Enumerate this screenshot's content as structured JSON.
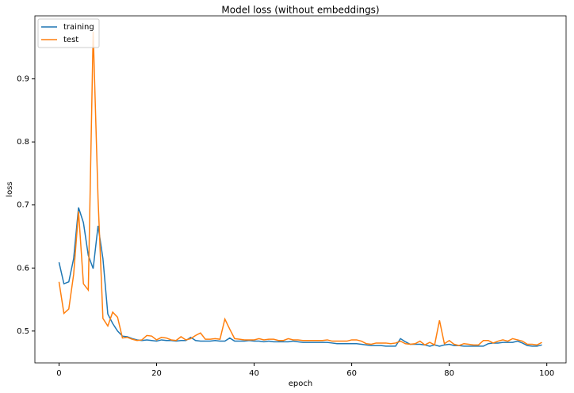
{
  "chart_data": {
    "type": "line",
    "title": "Model loss (without embeddings)",
    "x_label": "epoch",
    "y_label": "loss",
    "x": [
      0,
      1,
      2,
      3,
      4,
      5,
      6,
      7,
      8,
      9,
      10,
      11,
      12,
      13,
      14,
      15,
      16,
      17,
      18,
      19,
      20,
      21,
      22,
      23,
      24,
      25,
      26,
      27,
      28,
      29,
      30,
      31,
      32,
      33,
      34,
      35,
      36,
      37,
      38,
      39,
      40,
      41,
      42,
      43,
      44,
      45,
      46,
      47,
      48,
      49,
      50,
      51,
      52,
      53,
      54,
      55,
      56,
      57,
      58,
      59,
      60,
      61,
      62,
      63,
      64,
      65,
      66,
      67,
      68,
      69,
      70,
      71,
      72,
      73,
      74,
      75,
      76,
      77,
      78,
      79,
      80,
      81,
      82,
      83,
      84,
      85,
      86,
      87,
      88,
      89,
      90,
      91,
      92,
      93,
      94,
      95,
      96,
      97,
      98,
      99
    ],
    "series": [
      {
        "name": "training",
        "color": "#1f77b4",
        "values": [
          0.609,
          0.575,
          0.578,
          0.615,
          0.696,
          0.672,
          0.62,
          0.599,
          0.667,
          0.615,
          0.527,
          0.512,
          0.5,
          0.492,
          0.491,
          0.488,
          0.486,
          0.485,
          0.486,
          0.485,
          0.484,
          0.486,
          0.485,
          0.485,
          0.484,
          0.485,
          0.485,
          0.49,
          0.485,
          0.484,
          0.484,
          0.484,
          0.485,
          0.484,
          0.484,
          0.489,
          0.484,
          0.484,
          0.484,
          0.485,
          0.484,
          0.484,
          0.483,
          0.484,
          0.483,
          0.483,
          0.483,
          0.483,
          0.484,
          0.483,
          0.482,
          0.482,
          0.482,
          0.482,
          0.482,
          0.482,
          0.481,
          0.48,
          0.48,
          0.48,
          0.48,
          0.48,
          0.479,
          0.478,
          0.477,
          0.477,
          0.477,
          0.476,
          0.476,
          0.476,
          0.488,
          0.483,
          0.479,
          0.479,
          0.479,
          0.478,
          0.476,
          0.478,
          0.476,
          0.478,
          0.479,
          0.477,
          0.477,
          0.476,
          0.476,
          0.476,
          0.476,
          0.476,
          0.48,
          0.481,
          0.481,
          0.482,
          0.482,
          0.482,
          0.484,
          0.481,
          0.477,
          0.476,
          0.476,
          0.478
        ]
      },
      {
        "name": "test",
        "color": "#ff7f0e",
        "values": [
          0.578,
          0.528,
          0.535,
          0.59,
          0.69,
          0.575,
          0.565,
          0.975,
          0.71,
          0.52,
          0.508,
          0.53,
          0.522,
          0.489,
          0.49,
          0.487,
          0.485,
          0.486,
          0.493,
          0.492,
          0.486,
          0.49,
          0.489,
          0.486,
          0.485,
          0.491,
          0.486,
          0.488,
          0.493,
          0.497,
          0.487,
          0.487,
          0.488,
          0.487,
          0.519,
          0.503,
          0.488,
          0.487,
          0.486,
          0.486,
          0.486,
          0.488,
          0.486,
          0.487,
          0.487,
          0.485,
          0.485,
          0.488,
          0.486,
          0.486,
          0.485,
          0.485,
          0.485,
          0.485,
          0.485,
          0.486,
          0.484,
          0.484,
          0.484,
          0.484,
          0.486,
          0.486,
          0.484,
          0.48,
          0.479,
          0.481,
          0.481,
          0.481,
          0.48,
          0.481,
          0.484,
          0.48,
          0.479,
          0.48,
          0.484,
          0.478,
          0.482,
          0.478,
          0.517,
          0.48,
          0.485,
          0.479,
          0.477,
          0.48,
          0.479,
          0.478,
          0.478,
          0.485,
          0.485,
          0.481,
          0.484,
          0.486,
          0.484,
          0.488,
          0.486,
          0.484,
          0.479,
          0.479,
          0.478,
          0.482
        ]
      }
    ],
    "xlim": [
      -4.95,
      103.95
    ],
    "ylim": [
      0.4495,
      1.0
    ],
    "xticks": [
      0,
      20,
      40,
      60,
      80,
      100
    ],
    "yticks": [
      0.5,
      0.6,
      0.7,
      0.8,
      0.9
    ],
    "legend": "upper left"
  }
}
